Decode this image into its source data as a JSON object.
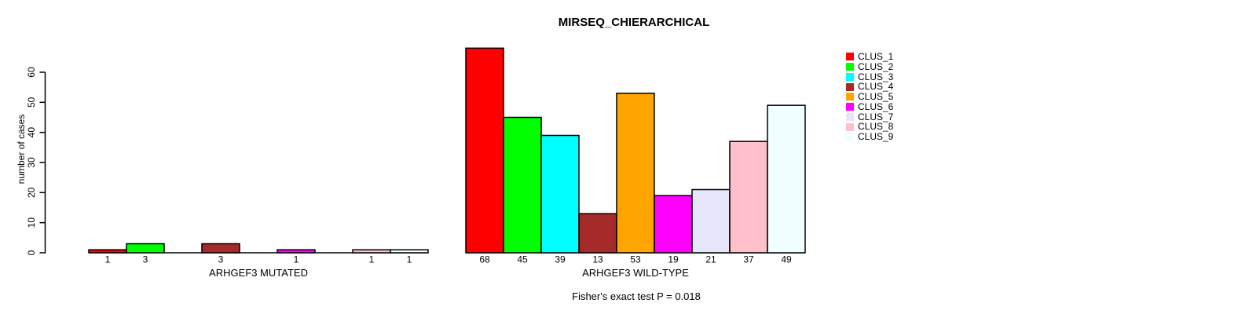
{
  "title": "MIRSEQ_CHIERARCHICAL",
  "subtitle": "Fisher's exact test P = 0.018",
  "chart_data": {
    "type": "bar",
    "title": "MIRSEQ_CHIERARCHICAL",
    "ylabel": "number of cases",
    "xlabel": "",
    "ylim": [
      0,
      68
    ],
    "yticks": [
      0,
      10,
      20,
      30,
      40,
      50,
      60
    ],
    "grid": false,
    "legend_position": "right",
    "series_names": [
      "CLUS_1",
      "CLUS_2",
      "CLUS_3",
      "CLUS_4",
      "CLUS_5",
      "CLUS_6",
      "CLUS_7",
      "CLUS_8",
      "CLUS_9"
    ],
    "colors": [
      "#FF0000",
      "#00FF00",
      "#00FFFF",
      "#A52A2A",
      "#FFA500",
      "#FF00FF",
      "#E6E6FA",
      "#FFC0CB",
      "#F0FFFF"
    ],
    "groups": [
      {
        "xlabel": "ARHGEF3 MUTATED",
        "values": [
          1,
          3,
          0,
          3,
          0,
          1,
          0,
          1,
          1
        ],
        "bar_labels": [
          "1",
          "3",
          "",
          "3",
          "",
          "1",
          "",
          "1",
          "1"
        ]
      },
      {
        "xlabel": "ARHGEF3 WILD-TYPE",
        "values": [
          68,
          45,
          39,
          13,
          53,
          19,
          21,
          37,
          49
        ],
        "bar_labels": [
          "68",
          "45",
          "39",
          "13",
          "53",
          "19",
          "21",
          "37",
          "49"
        ]
      }
    ],
    "annotation": "Fisher's exact test P = 0.018"
  }
}
